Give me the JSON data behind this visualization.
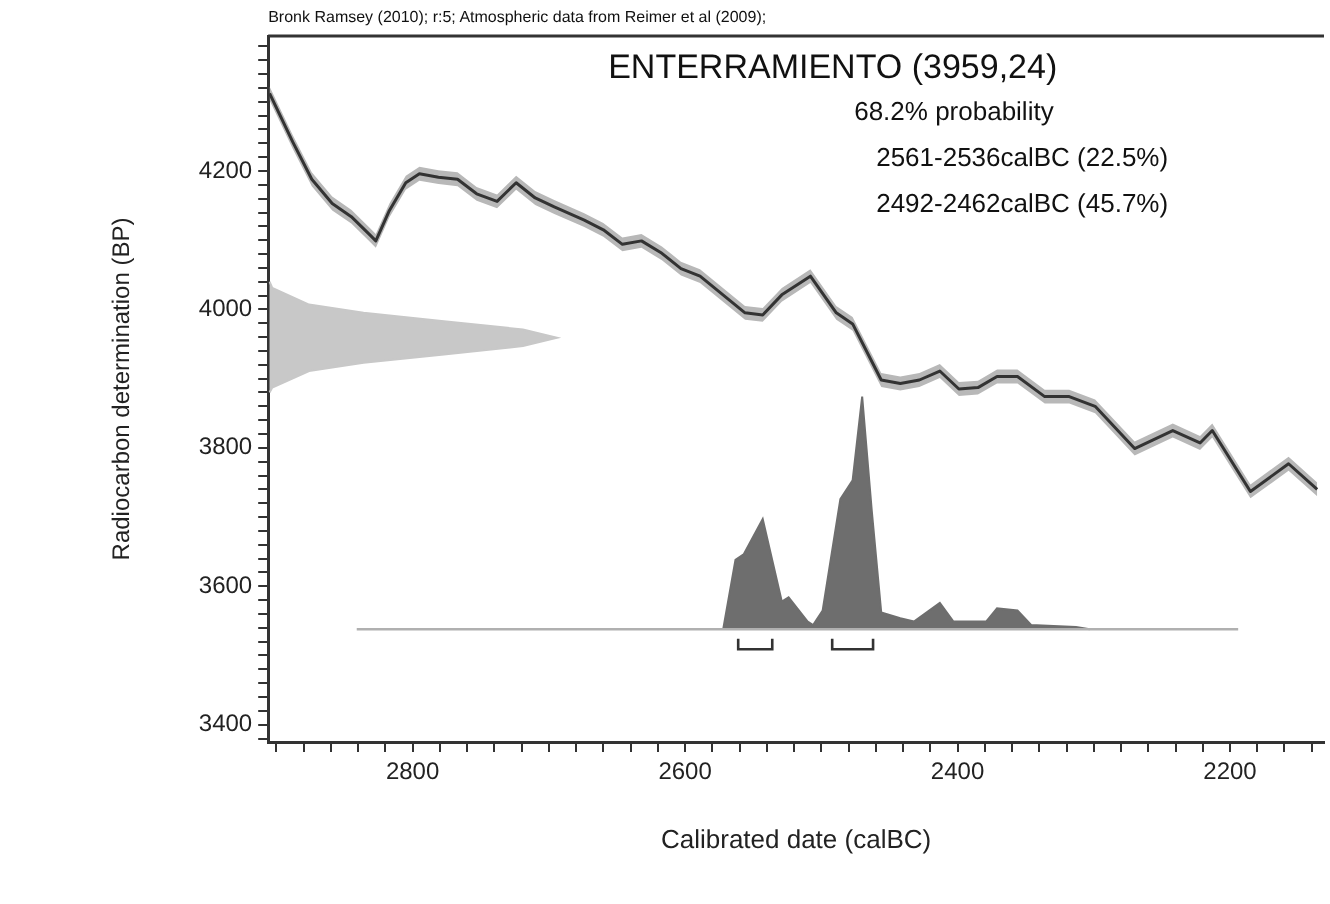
{
  "chart_data": {
    "type": "line",
    "title": "ENTERRAMIENTO (3959,24)",
    "xlabel": "Calibrated date (calBC)",
    "ylabel": "Radiocarbon determination (BP)",
    "annotations": [
      "Bronk Ramsey (2010); r:5; Atmospheric data from Reimer et al (2009);",
      "68.2% probability",
      "2561-2536calBC (22.5%)",
      "2492-2462calBC (45.7%)"
    ],
    "xlim": [
      2906,
      2131
    ],
    "ylim": [
      3375,
      4395
    ],
    "xticks": [
      {
        "value": 2900,
        "label": null
      },
      {
        "value": 2880,
        "label": null
      },
      {
        "value": 2860,
        "label": null
      },
      {
        "value": 2840,
        "label": null
      },
      {
        "value": 2820,
        "label": null
      },
      2800,
      {
        "value": 2780,
        "label": null
      },
      {
        "value": 2760,
        "label": null
      },
      {
        "value": 2740,
        "label": null
      },
      {
        "value": 2720,
        "label": null
      },
      {
        "value": 2700,
        "label": null
      },
      {
        "value": 2680,
        "label": null
      },
      {
        "value": 2660,
        "label": null
      },
      {
        "value": 2640,
        "label": null
      },
      {
        "value": 2620,
        "label": null
      },
      2600,
      {
        "value": 2580,
        "label": null
      },
      {
        "value": 2560,
        "label": null
      },
      {
        "value": 2540,
        "label": null
      },
      {
        "value": 2520,
        "label": null
      },
      {
        "value": 2500,
        "label": null
      },
      {
        "value": 2480,
        "label": null
      },
      {
        "value": 2460,
        "label": null
      },
      {
        "value": 2440,
        "label": null
      },
      {
        "value": 2420,
        "label": null
      },
      2400,
      {
        "value": 2380,
        "label": null
      },
      {
        "value": 2360,
        "label": null
      },
      {
        "value": 2340,
        "label": null
      },
      {
        "value": 2320,
        "label": null
      },
      {
        "value": 2300,
        "label": null
      },
      {
        "value": 2280,
        "label": null
      },
      {
        "value": 2260,
        "label": null
      },
      {
        "value": 2240,
        "label": null
      },
      {
        "value": 2220,
        "label": null
      },
      2200,
      {
        "value": 2180,
        "label": null
      },
      {
        "value": 2160,
        "label": null
      },
      {
        "value": 2140,
        "label": null
      }
    ],
    "yticks": [
      {
        "value": 3380,
        "label": null
      },
      3400,
      {
        "value": 3420,
        "label": null
      },
      {
        "value": 3440,
        "label": null
      },
      {
        "value": 3460,
        "label": null
      },
      {
        "value": 3480,
        "label": null
      },
      {
        "value": 3500,
        "label": null
      },
      {
        "value": 3520,
        "label": null
      },
      {
        "value": 3540,
        "label": null
      },
      {
        "value": 3560,
        "label": null
      },
      {
        "value": 3580,
        "label": null
      },
      3600,
      {
        "value": 3620,
        "label": null
      },
      {
        "value": 3640,
        "label": null
      },
      {
        "value": 3660,
        "label": null
      },
      {
        "value": 3680,
        "label": null
      },
      {
        "value": 3700,
        "label": null
      },
      {
        "value": 3720,
        "label": null
      },
      {
        "value": 3740,
        "label": null
      },
      {
        "value": 3760,
        "label": null
      },
      {
        "value": 3780,
        "label": null
      },
      3800,
      {
        "value": 3820,
        "label": null
      },
      {
        "value": 3840,
        "label": null
      },
      {
        "value": 3860,
        "label": null
      },
      {
        "value": 3880,
        "label": null
      },
      {
        "value": 3900,
        "label": null
      },
      {
        "value": 3920,
        "label": null
      },
      {
        "value": 3940,
        "label": null
      },
      {
        "value": 3960,
        "label": null
      },
      {
        "value": 3980,
        "label": null
      },
      4000,
      {
        "value": 4020,
        "label": null
      },
      {
        "value": 4040,
        "label": null
      },
      {
        "value": 4060,
        "label": null
      },
      {
        "value": 4080,
        "label": null
      },
      {
        "value": 4100,
        "label": null
      },
      {
        "value": 4120,
        "label": null
      },
      {
        "value": 4140,
        "label": null
      },
      {
        "value": 4160,
        "label": null
      },
      {
        "value": 4180,
        "label": null
      },
      4200,
      {
        "value": 4220,
        "label": null
      },
      {
        "value": 4240,
        "label": null
      },
      {
        "value": 4260,
        "label": null
      },
      {
        "value": 4280,
        "label": null
      },
      {
        "value": 4300,
        "label": null
      },
      {
        "value": 4320,
        "label": null
      },
      {
        "value": 4340,
        "label": null
      },
      {
        "value": 4360,
        "label": null
      },
      {
        "value": 4380,
        "label": null
      }
    ],
    "grid": false,
    "legend": false,
    "marker": "none",
    "series": [
      {
        "color": "#333333",
        "x": [
          2905,
          2888,
          2874,
          2859,
          2845,
          2831,
          2827,
          2817,
          2805,
          2795,
          2781,
          2767,
          2753,
          2738,
          2724,
          2710,
          2696,
          2674,
          2660,
          2646,
          2632,
          2617,
          2603,
          2589,
          2556,
          2543,
          2529,
          2508,
          2489,
          2477,
          2456,
          2442,
          2428,
          2413,
          2399,
          2385,
          2371,
          2356,
          2336,
          2318,
          2299,
          2270,
          2242,
          2222,
          2213,
          2185,
          2157,
          2136
        ],
        "values": [
          4312,
          4242,
          4188,
          4153,
          4134,
          4107,
          4099,
          4143,
          4183,
          4196,
          4191,
          4188,
          4167,
          4156,
          4183,
          4161,
          4148,
          4129,
          4115,
          4094,
          4099,
          4081,
          4059,
          4048,
          3995,
          3992,
          4021,
          4048,
          3995,
          3979,
          3898,
          3893,
          3898,
          3911,
          3885,
          3887,
          3903,
          3903,
          3874,
          3874,
          3860,
          3799,
          3825,
          3807,
          3825,
          3737,
          3777,
          3740
        ],
        "lower": [
          4302,
          4232,
          4178,
          4143,
          4124,
          4097,
          4089,
          4133,
          4173,
          4186,
          4181,
          4178,
          4157,
          4146,
          4173,
          4151,
          4138,
          4119,
          4105,
          4084,
          4089,
          4071,
          4049,
          4038,
          3985,
          3982,
          4011,
          4038,
          3985,
          3969,
          3888,
          3883,
          3888,
          3901,
          3875,
          3877,
          3893,
          3893,
          3864,
          3864,
          3850,
          3789,
          3815,
          3797,
          3815,
          3727,
          3767,
          3730
        ],
        "upper": [
          4322,
          4252,
          4198,
          4163,
          4144,
          4117,
          4109,
          4153,
          4193,
          4206,
          4201,
          4198,
          4177,
          4166,
          4193,
          4171,
          4158,
          4139,
          4125,
          4104,
          4109,
          4091,
          4069,
          4058,
          4005,
          4002,
          4031,
          4058,
          4005,
          3989,
          3908,
          3903,
          3908,
          3921,
          3895,
          3897,
          3913,
          3913,
          3884,
          3884,
          3870,
          3809,
          3835,
          3817,
          3835,
          3747,
          3787,
          3750
        ]
      },
      {
        "type": "area",
        "color": "#c8c8c8",
        "x": [
          2905,
          2903,
          2876,
          2836,
          2777,
          2719,
          2694,
          2719,
          2777,
          2836,
          2876,
          2903,
          2905
        ],
        "values": [
          3880,
          3887,
          3911,
          3923,
          3935,
          3947,
          3959,
          3971,
          3983,
          3995,
          4007,
          4031,
          4040
        ]
      },
      {
        "color": "#b0b0b0",
        "x": [
          2841,
          2194
        ],
        "values": [
          3538,
          3538
        ]
      },
      {
        "type": "area",
        "color": "#6e6e6e",
        "x": [
          2572,
          2563,
          2557,
          2543,
          2529,
          2524,
          2510,
          2506,
          2499,
          2486,
          2477,
          2470,
          2463,
          2456,
          2442,
          2432,
          2413,
          2403,
          2379,
          2371,
          2356,
          2346,
          2313,
          2303
        ],
        "values": [
          3538,
          3638,
          3646,
          3697,
          3578,
          3584,
          3549,
          3544,
          3565,
          3726,
          3753,
          3874,
          3710,
          3562,
          3554,
          3549,
          3576,
          3549,
          3549,
          3568,
          3565,
          3544,
          3541,
          3538
        ]
      },
      {
        "color": "#333333",
        "x": [
          2561,
          2561,
          2536,
          2536
        ],
        "values": [
          3524,
          3509,
          3509,
          3524
        ]
      },
      {
        "color": "#333333",
        "x": [
          2492,
          2492,
          2462,
          2462
        ],
        "values": [
          3524,
          3509,
          3509,
          3524
        ]
      }
    ]
  }
}
